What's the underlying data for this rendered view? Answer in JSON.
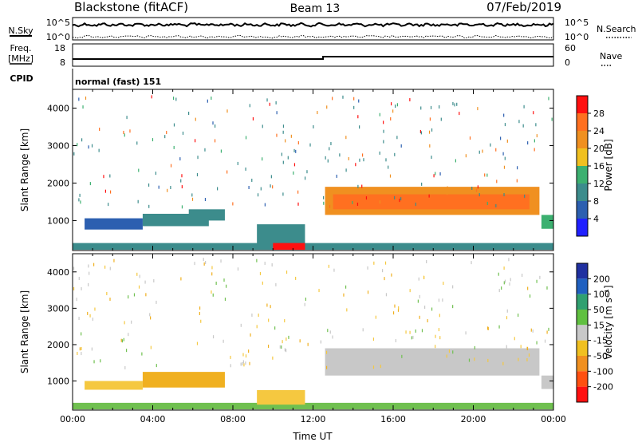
{
  "header": {
    "station": "Blackstone (fitACF)",
    "beam": "Beam 13",
    "date": "07/Feb/2019"
  },
  "nsky_panel": {
    "left_label": "N.Sky",
    "right_label": "N.Search",
    "top_tick": "10^5",
    "bottom_tick": "10^0"
  },
  "freq_panel": {
    "left_label_line1": "Freq.",
    "left_label_line2": "[MHz]",
    "left_top_tick": "18",
    "left_bottom_tick": "8",
    "right_label": "Nave",
    "right_top_tick": "60",
    "right_bottom_tick": "0"
  },
  "cpid_panel": {
    "label": "CPID",
    "text": "normal (fast) 151"
  },
  "chart_data": [
    {
      "type": "heatmap",
      "name": "power",
      "ylabel": "Slant Range [km]",
      "ylim": [
        200,
        4500
      ],
      "yticks": [
        "1000",
        "2000",
        "3000",
        "4000"
      ],
      "ytick_values": [
        1000,
        2000,
        3000,
        4000
      ],
      "xlim": [
        0,
        24
      ],
      "colorbar_label": "Power [dB]",
      "colorbar_ticks": [
        "4",
        "8",
        "12",
        "16",
        "20",
        "24",
        "28"
      ],
      "colorbar_tick_values": [
        4,
        8,
        12,
        16,
        20,
        24,
        28
      ],
      "colorbar_range": [
        0,
        32
      ],
      "colors": [
        "#2020ff",
        "#2c5fb0",
        "#3c8c8c",
        "#3cb070",
        "#f0c020",
        "#f09020",
        "#ff7020",
        "#ff1010"
      ],
      "regions": [
        {
          "t0": 0.0,
          "t1": 24.0,
          "r0": 220,
          "r1": 400,
          "value": 8
        },
        {
          "t0": 0.6,
          "t1": 3.5,
          "r0": 760,
          "r1": 1060,
          "value": 6
        },
        {
          "t0": 3.5,
          "t1": 6.8,
          "r0": 850,
          "r1": 1180,
          "value": 10
        },
        {
          "t0": 5.8,
          "t1": 7.6,
          "r0": 1000,
          "r1": 1300,
          "value": 8
        },
        {
          "t0": 9.2,
          "t1": 11.6,
          "r0": 350,
          "r1": 900,
          "value": 8
        },
        {
          "t0": 10.0,
          "t1": 11.6,
          "r0": 220,
          "r1": 400,
          "value": 28
        },
        {
          "t0": 12.6,
          "t1": 23.3,
          "r0": 1150,
          "r1": 1900,
          "value": 20
        },
        {
          "t0": 13.0,
          "t1": 22.8,
          "r0": 1300,
          "r1": 1700,
          "value": 26
        },
        {
          "t0": 23.4,
          "t1": 24.0,
          "r0": 780,
          "r1": 1150,
          "value": 12
        }
      ]
    },
    {
      "type": "heatmap",
      "name": "velocity",
      "ylabel": "Slant Range [km]",
      "xlabel": "Time UT",
      "ylim": [
        200,
        4500
      ],
      "yticks": [
        "1000",
        "2000",
        "3000",
        "4000"
      ],
      "ytick_values": [
        1000,
        2000,
        3000,
        4000
      ],
      "xlim": [
        0,
        24
      ],
      "xticks": [
        "00:00",
        "04:00",
        "08:00",
        "12:00",
        "16:00",
        "20:00",
        "00:00"
      ],
      "xtick_values": [
        0,
        4,
        8,
        12,
        16,
        20,
        24
      ],
      "colorbar_label": "Velocity [m s⁻¹]",
      "colorbar_ticks": [
        "200",
        "100",
        "50",
        "15",
        "-15",
        "-50",
        "-100",
        "-200"
      ],
      "colors": [
        "#2030a0",
        "#2060c0",
        "#30a070",
        "#60c040",
        "#c8c8c8",
        "#f0c020",
        "#f09020",
        "#ff5010",
        "#ff1010"
      ],
      "regions": [
        {
          "t0": 0.0,
          "t1": 24.0,
          "r0": 220,
          "r1": 400,
          "value": "green"
        },
        {
          "t0": 0.6,
          "t1": 3.5,
          "r0": 760,
          "r1": 1000,
          "value": "lightorange"
        },
        {
          "t0": 3.5,
          "t1": 7.6,
          "r0": 820,
          "r1": 1250,
          "value": "orange"
        },
        {
          "t0": 9.2,
          "t1": 11.6,
          "r0": 350,
          "r1": 750,
          "value": "lightorange"
        },
        {
          "t0": 12.6,
          "t1": 23.3,
          "r0": 1150,
          "r1": 1900,
          "value": "gray"
        },
        {
          "t0": 23.4,
          "t1": 24.0,
          "r0": 780,
          "r1": 1150,
          "value": "gray"
        }
      ]
    }
  ]
}
